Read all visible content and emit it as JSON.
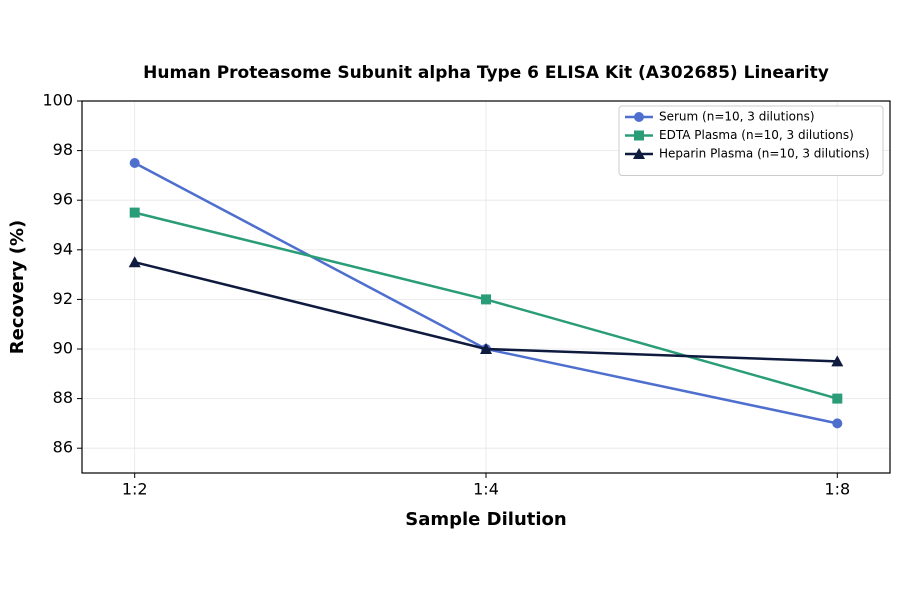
{
  "chart_data": {
    "type": "line",
    "title": "Human Proteasome Subunit alpha Type 6 ELISA Kit (A302685) Linearity",
    "x_label": "Sample Dilution",
    "y_label": "Recovery (%)",
    "categories": [
      "1:2",
      "1:4",
      "1:8"
    ],
    "series": [
      {
        "name": "Serum (n=10, 3 dilutions)",
        "color": "#4f6fcf",
        "marker": "circle",
        "values": [
          97.5,
          90,
          87
        ]
      },
      {
        "name": "EDTA Plasma (n=10, 3 dilutions)",
        "color": "#2a9d78",
        "marker": "square",
        "values": [
          95.5,
          92,
          88
        ]
      },
      {
        "name": "Heparin Plasma (n=10, 3 dilutions)",
        "color": "#0f1a3f",
        "marker": "triangle",
        "values": [
          93.5,
          90,
          89.5
        ]
      }
    ],
    "ylim": [
      85,
      100
    ],
    "yticks": [
      86,
      88,
      90,
      92,
      94,
      96,
      98,
      100
    ],
    "grid": true,
    "legend": "upper right"
  }
}
